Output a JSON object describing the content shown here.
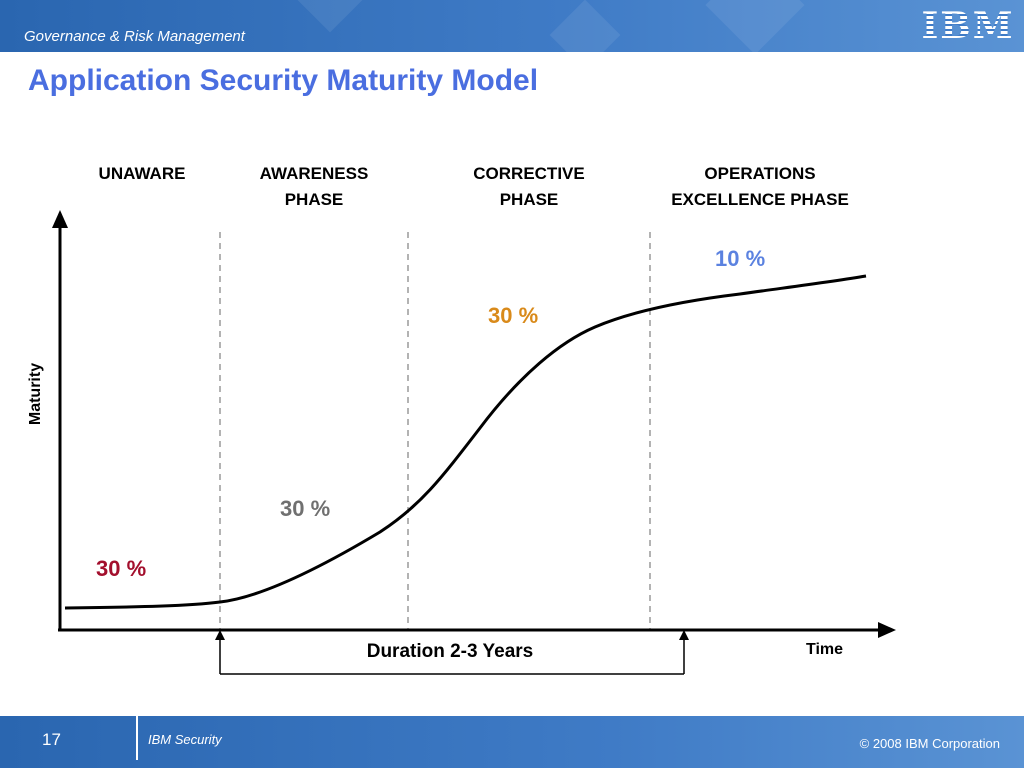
{
  "header": {
    "section": "Governance & Risk Management",
    "logo": "IBM"
  },
  "title": "Application Security Maturity Model",
  "phases": [
    {
      "line1": "UNAWARE",
      "line2": ""
    },
    {
      "line1": "AWARENESS",
      "line2": "PHASE"
    },
    {
      "line1": "CORRECTIVE",
      "line2": "PHASE"
    },
    {
      "line1": "OPERATIONS",
      "line2": "EXCELLENCE PHASE"
    }
  ],
  "percentages": [
    {
      "text": "30 %",
      "color": "#a30f2d"
    },
    {
      "text": "30 %",
      "color": "#707070"
    },
    {
      "text": "30 %",
      "color": "#d98a1a"
    },
    {
      "text": "10 %",
      "color": "#5b82e0"
    }
  ],
  "axes": {
    "y": "Maturity",
    "x": "Time"
  },
  "duration": "Duration 2-3 Years",
  "footer": {
    "page": "17",
    "brand": "IBM Security",
    "copyright": "© 2008 IBM Corporation"
  }
}
